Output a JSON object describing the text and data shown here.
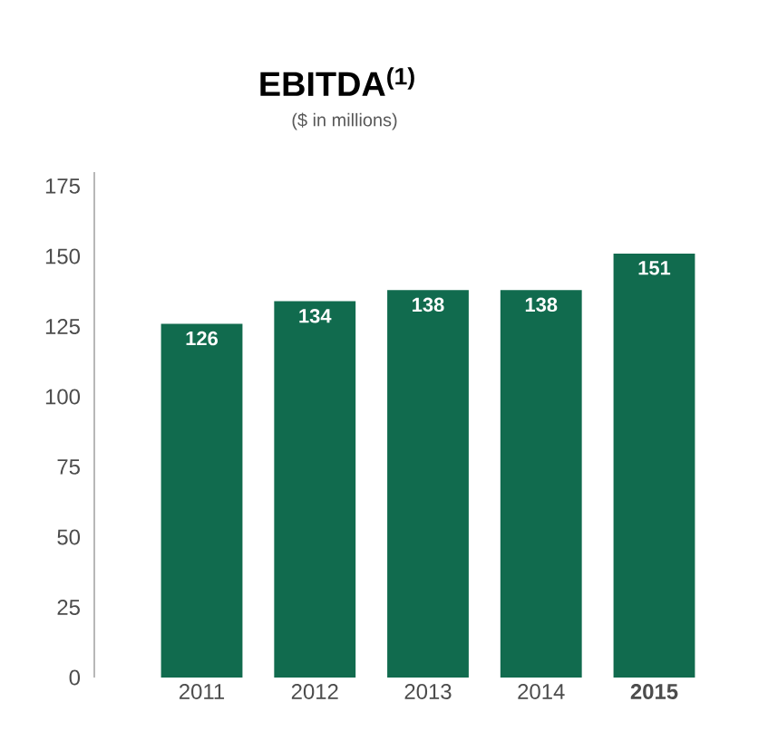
{
  "chart_data": {
    "type": "bar",
    "title": "EBITDA$^{(1)}$",
    "subtitle": "($ in millions)",
    "categories": [
      "2011",
      "2012",
      "2013",
      "2014",
      "**2015**"
    ],
    "values": [
      126,
      134,
      138,
      138,
      151
    ],
    "color": "#116b4e",
    "data_labels": true,
    "ylim": [
      0,
      180
    ],
    "yticks": [
      0,
      25,
      50,
      75,
      100,
      125,
      150,
      175
    ],
    "grid": false
  }
}
